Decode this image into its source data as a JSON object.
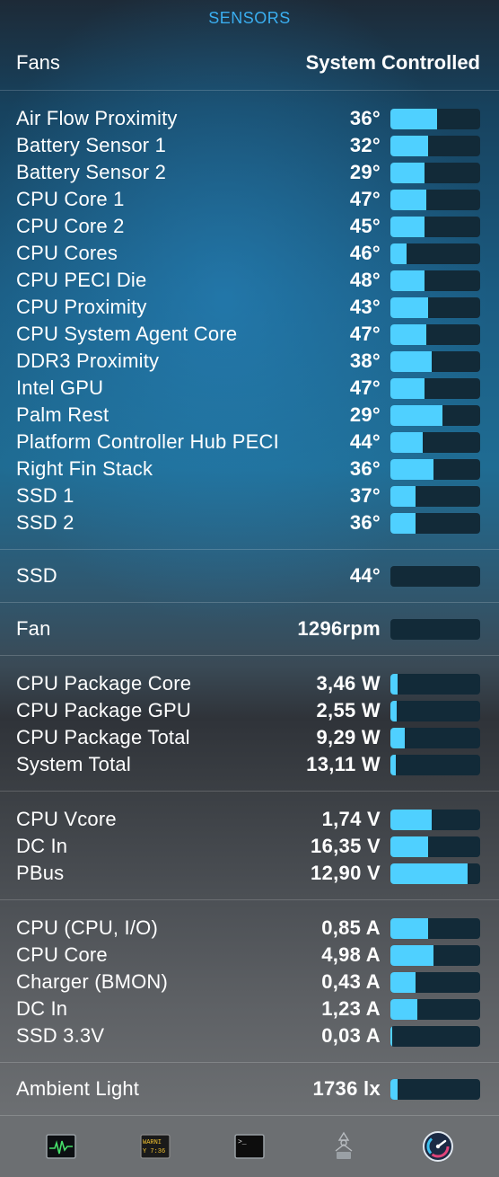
{
  "header": {
    "title": "SENSORS"
  },
  "fans": {
    "label": "Fans",
    "value": "System Controlled"
  },
  "temps": [
    {
      "label": "Air Flow Proximity",
      "value": "36°",
      "level": 0.52
    },
    {
      "label": "Battery Sensor 1",
      "value": "32°",
      "level": 0.42
    },
    {
      "label": "Battery Sensor 2",
      "value": "29°",
      "level": 0.38
    },
    {
      "label": "CPU Core 1",
      "value": "47°",
      "level": 0.4
    },
    {
      "label": "CPU Core 2",
      "value": "45°",
      "level": 0.38
    },
    {
      "label": "CPU Cores",
      "value": "46°",
      "level": 0.18
    },
    {
      "label": "CPU PECI Die",
      "value": "48°",
      "level": 0.38
    },
    {
      "label": "CPU Proximity",
      "value": "43°",
      "level": 0.42
    },
    {
      "label": "CPU System Agent Core",
      "value": "47°",
      "level": 0.4
    },
    {
      "label": "DDR3 Proximity",
      "value": "38°",
      "level": 0.46
    },
    {
      "label": "Intel GPU",
      "value": "47°",
      "level": 0.38
    },
    {
      "label": "Palm Rest",
      "value": "29°",
      "level": 0.58
    },
    {
      "label": "Platform Controller Hub PECI",
      "value": "44°",
      "level": 0.36
    },
    {
      "label": "Right Fin Stack",
      "value": "36°",
      "level": 0.48
    },
    {
      "label": "SSD 1",
      "value": "37°",
      "level": 0.28
    },
    {
      "label": "SSD 2",
      "value": "36°",
      "level": 0.28
    }
  ],
  "ssd": [
    {
      "label": "SSD",
      "value": "44°",
      "level": 0.0
    }
  ],
  "fan": [
    {
      "label": "Fan",
      "value": "1296rpm",
      "level": 0.0
    }
  ],
  "power": [
    {
      "label": "CPU Package Core",
      "value": "3,46 W",
      "level": 0.08
    },
    {
      "label": "CPU Package GPU",
      "value": "2,55 W",
      "level": 0.07
    },
    {
      "label": "CPU Package Total",
      "value": "9,29 W",
      "level": 0.16
    },
    {
      "label": "System Total",
      "value": "13,11 W",
      "level": 0.06
    }
  ],
  "voltage": [
    {
      "label": "CPU Vcore",
      "value": "1,74 V",
      "level": 0.46
    },
    {
      "label": "DC In",
      "value": "16,35 V",
      "level": 0.42
    },
    {
      "label": "PBus",
      "value": "12,90 V",
      "level": 0.86
    }
  ],
  "current": [
    {
      "label": "CPU (CPU, I/O)",
      "value": "0,85 A",
      "level": 0.42
    },
    {
      "label": "CPU Core",
      "value": "4,98 A",
      "level": 0.48
    },
    {
      "label": "Charger (BMON)",
      "value": "0,43 A",
      "level": 0.28
    },
    {
      "label": "DC In",
      "value": "1,23 A",
      "level": 0.3
    },
    {
      "label": "SSD 3.3V",
      "value": "0,03 A",
      "level": 0.02
    }
  ],
  "light": [
    {
      "label": "Ambient Light",
      "value": "1736 lx",
      "level": 0.08
    }
  ],
  "dock": {
    "items": [
      {
        "name": "activity-monitor-icon"
      },
      {
        "name": "console-icon",
        "text_top": "WARNI",
        "text_bottom": "Y 7:36"
      },
      {
        "name": "terminal-icon",
        "text": ">_"
      },
      {
        "name": "system-information-icon"
      },
      {
        "name": "istat-menus-icon"
      }
    ]
  },
  "colors": {
    "accent": "#3aaef0",
    "bar_fill": "#4fd0ff",
    "bar_track": "#122a38"
  }
}
